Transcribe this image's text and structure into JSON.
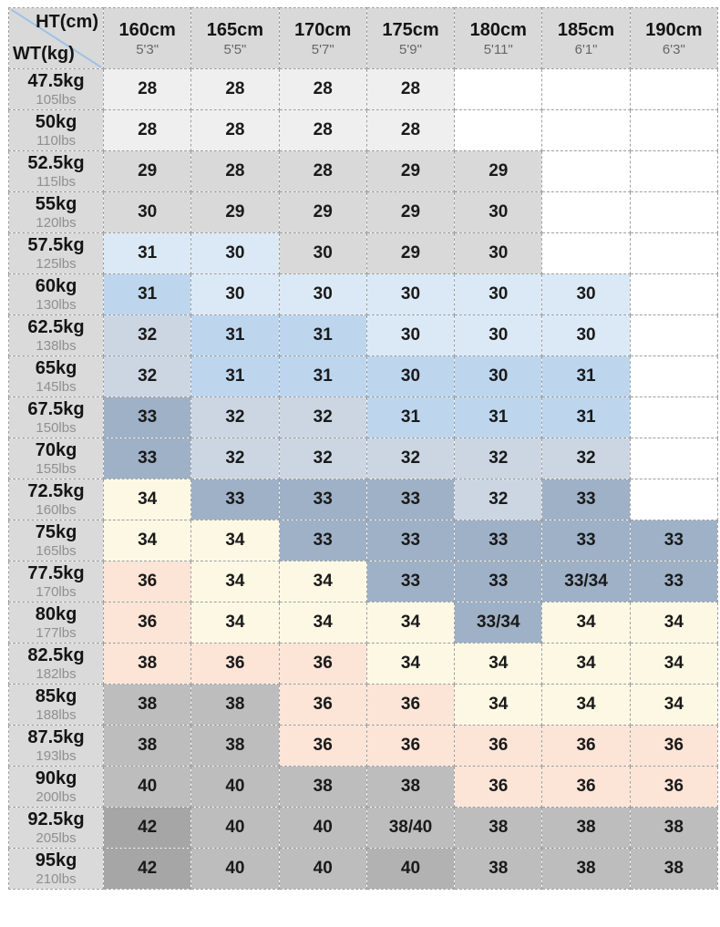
{
  "corner": {
    "ht_label": "HT(cm)",
    "wt_label": "WT(kg)"
  },
  "palette": {
    "white": "#ffffff",
    "light": "#efefef",
    "gray": "#d9d9d9",
    "paleblue": "#dbe9f6",
    "blue": "#bdd6ee",
    "lightsteel": "#ccd6e3",
    "steel": "#9fb1c7",
    "cream": "#fdf8e3",
    "peach": "#fce4d6",
    "gray2": "#bdbdbd",
    "gray2b": "#b2b2b2",
    "gray3": "#a6a6a6",
    "diagonal_line": "#9cc2e6",
    "border": "#9f9f9f"
  },
  "chart_data": {
    "type": "table",
    "title": "Height / Weight size chart",
    "columns": [
      {
        "cm": "160cm",
        "ft": "5'3\""
      },
      {
        "cm": "165cm",
        "ft": "5'5\""
      },
      {
        "cm": "170cm",
        "ft": "5'7\""
      },
      {
        "cm": "175cm",
        "ft": "5'9\""
      },
      {
        "cm": "180cm",
        "ft": "5'11\""
      },
      {
        "cm": "185cm",
        "ft": "6'1\""
      },
      {
        "cm": "190cm",
        "ft": "6'3\""
      }
    ],
    "rows": [
      {
        "kg": "47.5kg",
        "lbs": "105lbs",
        "cells": [
          {
            "v": "28",
            "c": "light"
          },
          {
            "v": "28",
            "c": "light"
          },
          {
            "v": "28",
            "c": "light"
          },
          {
            "v": "28",
            "c": "light"
          },
          {
            "v": "",
            "c": "white"
          },
          {
            "v": "",
            "c": "white"
          },
          {
            "v": "",
            "c": "white"
          }
        ]
      },
      {
        "kg": "50kg",
        "lbs": "110lbs",
        "cells": [
          {
            "v": "28",
            "c": "light"
          },
          {
            "v": "28",
            "c": "light"
          },
          {
            "v": "28",
            "c": "light"
          },
          {
            "v": "28",
            "c": "light"
          },
          {
            "v": "",
            "c": "white"
          },
          {
            "v": "",
            "c": "white"
          },
          {
            "v": "",
            "c": "white"
          }
        ]
      },
      {
        "kg": "52.5kg",
        "lbs": "115lbs",
        "cells": [
          {
            "v": "29",
            "c": "gray"
          },
          {
            "v": "28",
            "c": "gray"
          },
          {
            "v": "28",
            "c": "gray"
          },
          {
            "v": "29",
            "c": "gray"
          },
          {
            "v": "29",
            "c": "gray"
          },
          {
            "v": "",
            "c": "white"
          },
          {
            "v": "",
            "c": "white"
          }
        ]
      },
      {
        "kg": "55kg",
        "lbs": "120lbs",
        "cells": [
          {
            "v": "30",
            "c": "gray"
          },
          {
            "v": "29",
            "c": "gray"
          },
          {
            "v": "29",
            "c": "gray"
          },
          {
            "v": "29",
            "c": "gray"
          },
          {
            "v": "30",
            "c": "gray"
          },
          {
            "v": "",
            "c": "white"
          },
          {
            "v": "",
            "c": "white"
          }
        ]
      },
      {
        "kg": "57.5kg",
        "lbs": "125lbs",
        "cells": [
          {
            "v": "31",
            "c": "paleblue"
          },
          {
            "v": "30",
            "c": "paleblue"
          },
          {
            "v": "30",
            "c": "gray"
          },
          {
            "v": "29",
            "c": "gray"
          },
          {
            "v": "30",
            "c": "gray"
          },
          {
            "v": "",
            "c": "white"
          },
          {
            "v": "",
            "c": "white"
          }
        ]
      },
      {
        "kg": "60kg",
        "lbs": "130lbs",
        "cells": [
          {
            "v": "31",
            "c": "blue"
          },
          {
            "v": "30",
            "c": "paleblue"
          },
          {
            "v": "30",
            "c": "paleblue"
          },
          {
            "v": "30",
            "c": "paleblue"
          },
          {
            "v": "30",
            "c": "paleblue"
          },
          {
            "v": "30",
            "c": "paleblue"
          },
          {
            "v": "",
            "c": "white"
          }
        ]
      },
      {
        "kg": "62.5kg",
        "lbs": "138lbs",
        "cells": [
          {
            "v": "32",
            "c": "lightsteel"
          },
          {
            "v": "31",
            "c": "blue"
          },
          {
            "v": "31",
            "c": "blue"
          },
          {
            "v": "30",
            "c": "paleblue"
          },
          {
            "v": "30",
            "c": "paleblue"
          },
          {
            "v": "30",
            "c": "paleblue"
          },
          {
            "v": "",
            "c": "white"
          }
        ]
      },
      {
        "kg": "65kg",
        "lbs": "145lbs",
        "cells": [
          {
            "v": "32",
            "c": "lightsteel"
          },
          {
            "v": "31",
            "c": "blue"
          },
          {
            "v": "31",
            "c": "blue"
          },
          {
            "v": "30",
            "c": "blue"
          },
          {
            "v": "30",
            "c": "blue"
          },
          {
            "v": "31",
            "c": "blue"
          },
          {
            "v": "",
            "c": "white"
          }
        ]
      },
      {
        "kg": "67.5kg",
        "lbs": "150lbs",
        "cells": [
          {
            "v": "33",
            "c": "steel"
          },
          {
            "v": "32",
            "c": "lightsteel"
          },
          {
            "v": "32",
            "c": "lightsteel"
          },
          {
            "v": "31",
            "c": "blue"
          },
          {
            "v": "31",
            "c": "blue"
          },
          {
            "v": "31",
            "c": "blue"
          },
          {
            "v": "",
            "c": "white"
          }
        ]
      },
      {
        "kg": "70kg",
        "lbs": "155lbs",
        "cells": [
          {
            "v": "33",
            "c": "steel"
          },
          {
            "v": "32",
            "c": "lightsteel"
          },
          {
            "v": "32",
            "c": "lightsteel"
          },
          {
            "v": "32",
            "c": "lightsteel"
          },
          {
            "v": "32",
            "c": "lightsteel"
          },
          {
            "v": "32",
            "c": "lightsteel"
          },
          {
            "v": "",
            "c": "white"
          }
        ]
      },
      {
        "kg": "72.5kg",
        "lbs": "160lbs",
        "cells": [
          {
            "v": "34",
            "c": "cream"
          },
          {
            "v": "33",
            "c": "steel"
          },
          {
            "v": "33",
            "c": "steel"
          },
          {
            "v": "33",
            "c": "steel"
          },
          {
            "v": "32",
            "c": "lightsteel"
          },
          {
            "v": "33",
            "c": "steel"
          },
          {
            "v": "",
            "c": "white"
          }
        ]
      },
      {
        "kg": "75kg",
        "lbs": "165lbs",
        "cells": [
          {
            "v": "34",
            "c": "cream"
          },
          {
            "v": "34",
            "c": "cream"
          },
          {
            "v": "33",
            "c": "steel"
          },
          {
            "v": "33",
            "c": "steel"
          },
          {
            "v": "33",
            "c": "steel"
          },
          {
            "v": "33",
            "c": "steel"
          },
          {
            "v": "33",
            "c": "steel"
          }
        ]
      },
      {
        "kg": "77.5kg",
        "lbs": "170lbs",
        "cells": [
          {
            "v": "36",
            "c": "peach"
          },
          {
            "v": "34",
            "c": "cream"
          },
          {
            "v": "34",
            "c": "cream"
          },
          {
            "v": "33",
            "c": "steel"
          },
          {
            "v": "33",
            "c": "steel"
          },
          {
            "v": "33/34",
            "c": "steel"
          },
          {
            "v": "33",
            "c": "steel"
          }
        ]
      },
      {
        "kg": "80kg",
        "lbs": "177lbs",
        "cells": [
          {
            "v": "36",
            "c": "peach"
          },
          {
            "v": "34",
            "c": "cream"
          },
          {
            "v": "34",
            "c": "cream"
          },
          {
            "v": "34",
            "c": "cream"
          },
          {
            "v": "33/34",
            "c": "steel"
          },
          {
            "v": "34",
            "c": "cream"
          },
          {
            "v": "34",
            "c": "cream"
          }
        ]
      },
      {
        "kg": "82.5kg",
        "lbs": "182lbs",
        "cells": [
          {
            "v": "38",
            "c": "peach"
          },
          {
            "v": "36",
            "c": "peach"
          },
          {
            "v": "36",
            "c": "peach"
          },
          {
            "v": "34",
            "c": "cream"
          },
          {
            "v": "34",
            "c": "cream"
          },
          {
            "v": "34",
            "c": "cream"
          },
          {
            "v": "34",
            "c": "cream"
          }
        ]
      },
      {
        "kg": "85kg",
        "lbs": "188lbs",
        "cells": [
          {
            "v": "38",
            "c": "gray2"
          },
          {
            "v": "38",
            "c": "gray2"
          },
          {
            "v": "36",
            "c": "peach"
          },
          {
            "v": "36",
            "c": "peach"
          },
          {
            "v": "34",
            "c": "cream"
          },
          {
            "v": "34",
            "c": "cream"
          },
          {
            "v": "34",
            "c": "cream"
          }
        ]
      },
      {
        "kg": "87.5kg",
        "lbs": "193lbs",
        "cells": [
          {
            "v": "38",
            "c": "gray2"
          },
          {
            "v": "38",
            "c": "gray2"
          },
          {
            "v": "36",
            "c": "peach"
          },
          {
            "v": "36",
            "c": "peach"
          },
          {
            "v": "36",
            "c": "peach"
          },
          {
            "v": "36",
            "c": "peach"
          },
          {
            "v": "36",
            "c": "peach"
          }
        ]
      },
      {
        "kg": "90kg",
        "lbs": "200lbs",
        "cells": [
          {
            "v": "40",
            "c": "gray2"
          },
          {
            "v": "40",
            "c": "gray2"
          },
          {
            "v": "38",
            "c": "gray2"
          },
          {
            "v": "38",
            "c": "gray2"
          },
          {
            "v": "36",
            "c": "peach"
          },
          {
            "v": "36",
            "c": "peach"
          },
          {
            "v": "36",
            "c": "peach"
          }
        ]
      },
      {
        "kg": "92.5kg",
        "lbs": "205lbs",
        "cells": [
          {
            "v": "42",
            "c": "gray3"
          },
          {
            "v": "40",
            "c": "gray2"
          },
          {
            "v": "40",
            "c": "gray2"
          },
          {
            "v": "38/40",
            "c": "gray2"
          },
          {
            "v": "38",
            "c": "gray2"
          },
          {
            "v": "38",
            "c": "gray2"
          },
          {
            "v": "38",
            "c": "gray2"
          }
        ]
      },
      {
        "kg": "95kg",
        "lbs": "210lbs",
        "cells": [
          {
            "v": "42",
            "c": "gray3"
          },
          {
            "v": "40",
            "c": "gray2"
          },
          {
            "v": "40",
            "c": "gray2"
          },
          {
            "v": "40",
            "c": "gray2b"
          },
          {
            "v": "38",
            "c": "gray2"
          },
          {
            "v": "38",
            "c": "gray2"
          },
          {
            "v": "38",
            "c": "gray2"
          }
        ]
      }
    ]
  }
}
